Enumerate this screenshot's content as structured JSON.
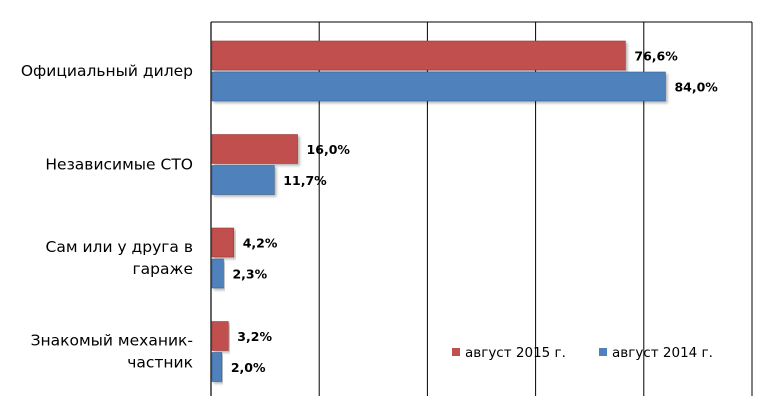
{
  "chart_data": {
    "type": "bar",
    "orientation": "horizontal",
    "categories": [
      [
        "Официальный дилер"
      ],
      [
        "Независимые СТО"
      ],
      [
        "Сам или у друга в",
        "гараже"
      ],
      [
        "Знакомый механик-",
        "частник"
      ]
    ],
    "series": [
      {
        "name": "август 2015 г.",
        "color": "#c0504d",
        "values": [
          76.6,
          16.0,
          4.2,
          3.2
        ],
        "labels": [
          "76,6%",
          "16,0%",
          "4,2%",
          "3,2%"
        ]
      },
      {
        "name": "август 2014 г.",
        "color": "#4f81bd",
        "values": [
          84.0,
          11.7,
          2.3,
          2.0
        ],
        "labels": [
          "84,0%",
          "11,7%",
          "2,3%",
          "2,0%"
        ]
      }
    ],
    "xlim": [
      0,
      100
    ],
    "grid": true,
    "legend_position": "bottom-right",
    "title": "",
    "xlabel": "",
    "ylabel": ""
  }
}
